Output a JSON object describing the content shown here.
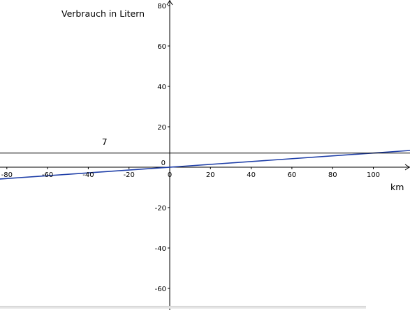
{
  "chart_data": {
    "type": "line",
    "title": "",
    "ylabel": "Verbrauch in Litern",
    "xlabel": "km",
    "xlim": [
      -85,
      119
    ],
    "ylim": [
      -68.5,
      80.5
    ],
    "x_ticks": [
      -80,
      -60,
      -40,
      -20,
      0,
      20,
      40,
      60,
      80,
      100
    ],
    "y_ticks": [
      -60,
      -40,
      -20,
      0,
      20,
      40,
      60,
      80
    ],
    "x_tick_labels": [
      "-80",
      "-60",
      "-40",
      "-20",
      "0",
      "20",
      "40",
      "60",
      "80",
      "100"
    ],
    "y_tick_labels": [
      "-60",
      "-40",
      "-20",
      "0",
      "20",
      "40",
      "60",
      "80"
    ],
    "origin_label": "0",
    "grid": false,
    "series": [
      {
        "color": "#1f3fa8",
        "points": [
          [
            -85,
            -5.95
          ],
          [
            119,
            8.33
          ]
        ]
      },
      {
        "color": "#000000",
        "points": [
          [
            -85,
            7
          ],
          [
            119,
            7
          ]
        ]
      }
    ],
    "annotations": [
      {
        "text": "7",
        "x": -32,
        "y": 11
      }
    ]
  }
}
